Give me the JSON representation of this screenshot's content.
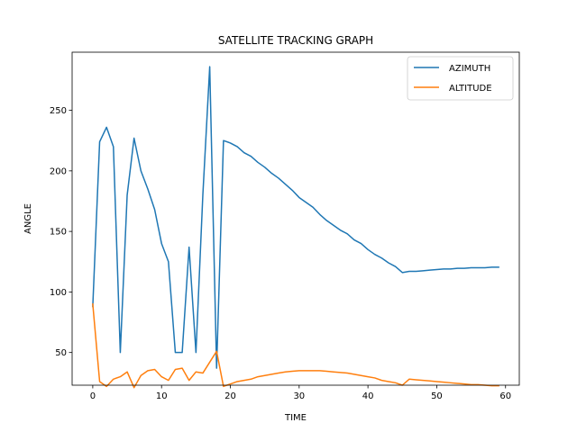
{
  "chart_data": {
    "type": "line",
    "title": "SATELLITE TRACKING GRAPH",
    "xlabel": "TIME",
    "ylabel": "ANGLE",
    "xlim": [
      -3,
      62
    ],
    "ylim": [
      23,
      298
    ],
    "xticks": [
      0,
      10,
      20,
      30,
      40,
      50,
      60
    ],
    "yticks": [
      50,
      100,
      150,
      200,
      250
    ],
    "grid": false,
    "legend_position": "top-right",
    "x": [
      0,
      1,
      2,
      3,
      4,
      5,
      6,
      7,
      8,
      9,
      10,
      11,
      12,
      13,
      14,
      15,
      16,
      17,
      18,
      19,
      20,
      21,
      22,
      23,
      24,
      25,
      26,
      27,
      28,
      29,
      30,
      31,
      32,
      33,
      34,
      35,
      36,
      37,
      38,
      39,
      40,
      41,
      42,
      43,
      44,
      45,
      46,
      47,
      48,
      49,
      50,
      51,
      52,
      53,
      54,
      55,
      56,
      57,
      58,
      59
    ],
    "series": [
      {
        "name": "AZIMUTH",
        "color": "#1f77b4",
        "values": [
          88,
          224,
          236,
          220,
          50,
          180,
          227,
          200,
          185,
          168,
          140,
          125,
          50,
          50,
          137,
          50,
          180,
          286,
          37,
          225,
          223,
          220,
          215,
          212,
          207,
          203,
          198,
          194,
          189,
          184,
          178,
          174,
          170,
          164,
          159,
          155,
          151,
          148,
          143,
          140,
          135,
          131,
          128,
          124,
          121,
          116,
          117,
          117,
          117.5,
          118,
          118.5,
          119,
          119,
          119.5,
          119.5,
          120,
          120,
          120,
          120.5,
          120.5
        ]
      },
      {
        "name": "ALTITUDE",
        "color": "#ff7f0e",
        "values": [
          90,
          26,
          22,
          28,
          30,
          34,
          21,
          31,
          35,
          36,
          30,
          27,
          36,
          37,
          27,
          34,
          33,
          42,
          51,
          22,
          24,
          26,
          27,
          28,
          30,
          31,
          32,
          33,
          34,
          34.5,
          35,
          35,
          35,
          35,
          34.5,
          34,
          33.5,
          33,
          32,
          31,
          30,
          29,
          27,
          26,
          25,
          23,
          28,
          27.5,
          27,
          26.5,
          26,
          25.5,
          25,
          24.5,
          24,
          23.5,
          23.5,
          23,
          22.5,
          22.5
        ]
      }
    ]
  }
}
